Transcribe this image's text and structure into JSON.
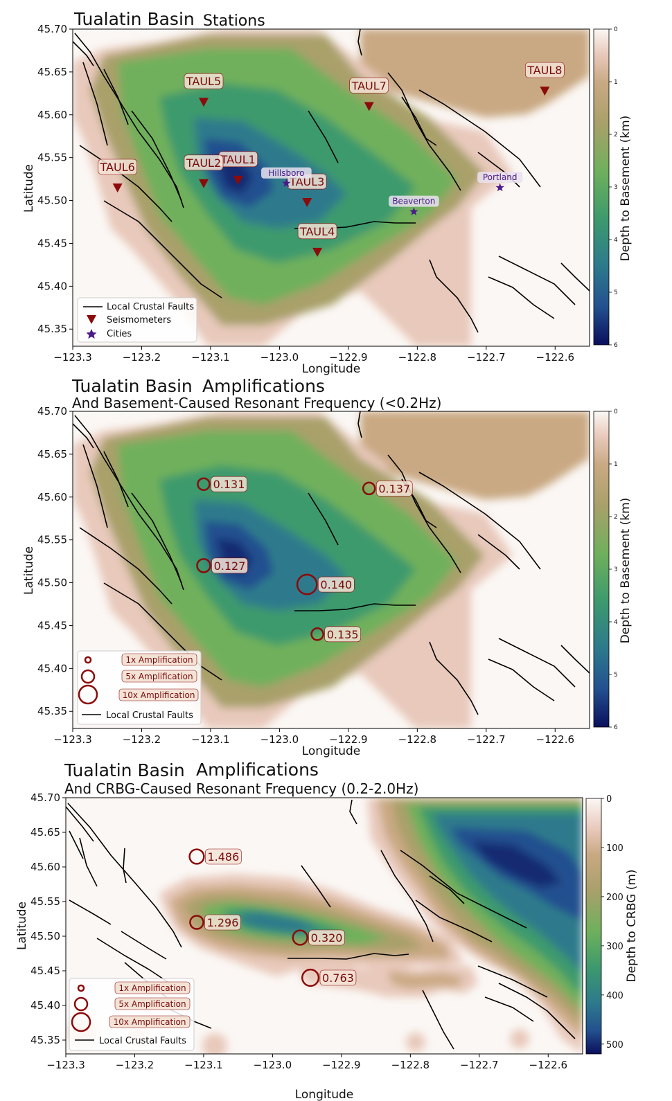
{
  "colors": {
    "station": "#8b0a0a",
    "city": "#4b1a8a",
    "fault": "#000000",
    "label_bg": "#f3e3d6"
  },
  "charts": [
    {
      "title_a": "Tualatin Basin",
      "title_b": "Stations",
      "subtitle": "",
      "xlabel": "Longitude",
      "ylabel": "Latitude",
      "cbar_label": "Depth to Basement (km)",
      "xticks": [
        "−123.3",
        "−123.2",
        "−123.1",
        "−123.0",
        "−122.9",
        "−122.8",
        "−122.7",
        "−122.6"
      ],
      "yticks": [
        "45.70",
        "45.65",
        "45.60",
        "45.55",
        "45.50",
        "45.45",
        "45.40",
        "45.35"
      ],
      "cbar_ticks": [
        "0",
        "1",
        "2",
        "3",
        "4",
        "5",
        "6"
      ],
      "legend": {
        "faults": "Local Crustal Faults",
        "seismometers": "Seismometers",
        "cities": "Cities"
      }
    },
    {
      "title_a": "Tualatin Basin",
      "title_b": "Amplifications",
      "subtitle": "And Basement-Caused Resonant Frequency (<0.2Hz)",
      "xlabel": "Longitude",
      "ylabel": "Latitude",
      "cbar_label": "Depth to Basement (km)",
      "xticks": [
        "−123.3",
        "−123.2",
        "−123.1",
        "−123.0",
        "−122.9",
        "−122.8",
        "−122.7",
        "−122.6"
      ],
      "yticks": [
        "45.70",
        "45.65",
        "45.60",
        "45.55",
        "45.50",
        "45.45",
        "45.40",
        "45.35"
      ],
      "cbar_ticks": [
        "0",
        "1",
        "2",
        "3",
        "4",
        "5",
        "6"
      ],
      "legend": {
        "amp1": "1x Amplification",
        "amp5": "5x Amplification",
        "amp10": "10x Amplification",
        "faults": "Local Crustal Faults"
      }
    },
    {
      "title_a": "Tualatin Basin",
      "title_b": "Amplifications",
      "subtitle": "And CRBG-Caused Resonant Frequency (0.2-2.0Hz)",
      "xlabel": "Longitude",
      "ylabel": "Latitude",
      "cbar_label": "Depth to CRBG (m)",
      "xticks": [
        "−123.3",
        "−123.2",
        "−123.1",
        "−123.0",
        "−122.9",
        "−122.8",
        "−122.7",
        "−122.6"
      ],
      "yticks": [
        "45.70",
        "45.65",
        "45.60",
        "45.55",
        "45.50",
        "45.45",
        "45.40",
        "45.35"
      ],
      "cbar_ticks": [
        "0",
        "100",
        "200",
        "300",
        "400",
        "500"
      ],
      "legend": {
        "amp1": "1x Amplification",
        "amp5": "5x Amplification",
        "amp10": "10x Amplification",
        "faults": "Local Crustal Faults"
      }
    }
  ],
  "chart_data": [
    {
      "type": "scatter",
      "title": "Tualatin Basin Stations",
      "xlabel": "Longitude",
      "ylabel": "Latitude",
      "xlim": [
        -123.3,
        -122.55
      ],
      "ylim": [
        45.33,
        45.7
      ],
      "colorbar": {
        "label": "Depth to Basement (km)",
        "range": [
          0,
          6
        ]
      },
      "stations": [
        {
          "name": "TAUL1",
          "lon": -123.06,
          "lat": 45.524
        },
        {
          "name": "TAUL2",
          "lon": -123.11,
          "lat": 45.52
        },
        {
          "name": "TAUL3",
          "lon": -122.96,
          "lat": 45.498
        },
        {
          "name": "TAUL4",
          "lon": -122.945,
          "lat": 45.44
        },
        {
          "name": "TAUL5",
          "lon": -123.11,
          "lat": 45.615
        },
        {
          "name": "TAUL6",
          "lon": -123.235,
          "lat": 45.515
        },
        {
          "name": "TAUL7",
          "lon": -122.87,
          "lat": 45.61
        },
        {
          "name": "TAUL8",
          "lon": -122.615,
          "lat": 45.628
        }
      ],
      "cities": [
        {
          "name": "Hillsboro",
          "lon": -122.99,
          "lat": 45.52
        },
        {
          "name": "Beaverton",
          "lon": -122.805,
          "lat": 45.487
        },
        {
          "name": "Portland",
          "lon": -122.68,
          "lat": 45.515
        }
      ]
    },
    {
      "type": "scatter",
      "title": "Tualatin Basin Amplifications",
      "subtitle": "And Basement-Caused Resonant Frequency (<0.2Hz)",
      "xlabel": "Longitude",
      "ylabel": "Latitude",
      "xlim": [
        -123.3,
        -122.55
      ],
      "ylim": [
        45.33,
        45.7
      ],
      "colorbar": {
        "label": "Depth to Basement (km)",
        "range": [
          0,
          6
        ]
      },
      "points": [
        {
          "lon": -123.11,
          "lat": 45.615,
          "freq": "0.131",
          "amplification": 2
        },
        {
          "lon": -123.11,
          "lat": 45.52,
          "freq": "0.127",
          "amplification": 3
        },
        {
          "lon": -122.87,
          "lat": 45.61,
          "freq": "0.137",
          "amplification": 2
        },
        {
          "lon": -122.96,
          "lat": 45.498,
          "freq": "0.140",
          "amplification": 10
        },
        {
          "lon": -122.945,
          "lat": 45.44,
          "freq": "0.135",
          "amplification": 2
        }
      ]
    },
    {
      "type": "scatter",
      "title": "Tualatin Basin Amplifications",
      "subtitle": "And CRBG-Caused Resonant Frequency (0.2-2.0Hz)",
      "xlabel": "Longitude",
      "ylabel": "Latitude",
      "xlim": [
        -123.3,
        -122.55
      ],
      "ylim": [
        45.33,
        45.7
      ],
      "colorbar": {
        "label": "Depth to CRBG (m)",
        "range": [
          0,
          520
        ]
      },
      "points": [
        {
          "lon": -123.11,
          "lat": 45.615,
          "freq": "1.486",
          "amplification": 4
        },
        {
          "lon": -123.11,
          "lat": 45.52,
          "freq": "1.296",
          "amplification": 3
        },
        {
          "lon": -122.96,
          "lat": 45.498,
          "freq": "0.320",
          "amplification": 4
        },
        {
          "lon": -122.945,
          "lat": 45.44,
          "freq": "0.763",
          "amplification": 6
        }
      ]
    }
  ]
}
